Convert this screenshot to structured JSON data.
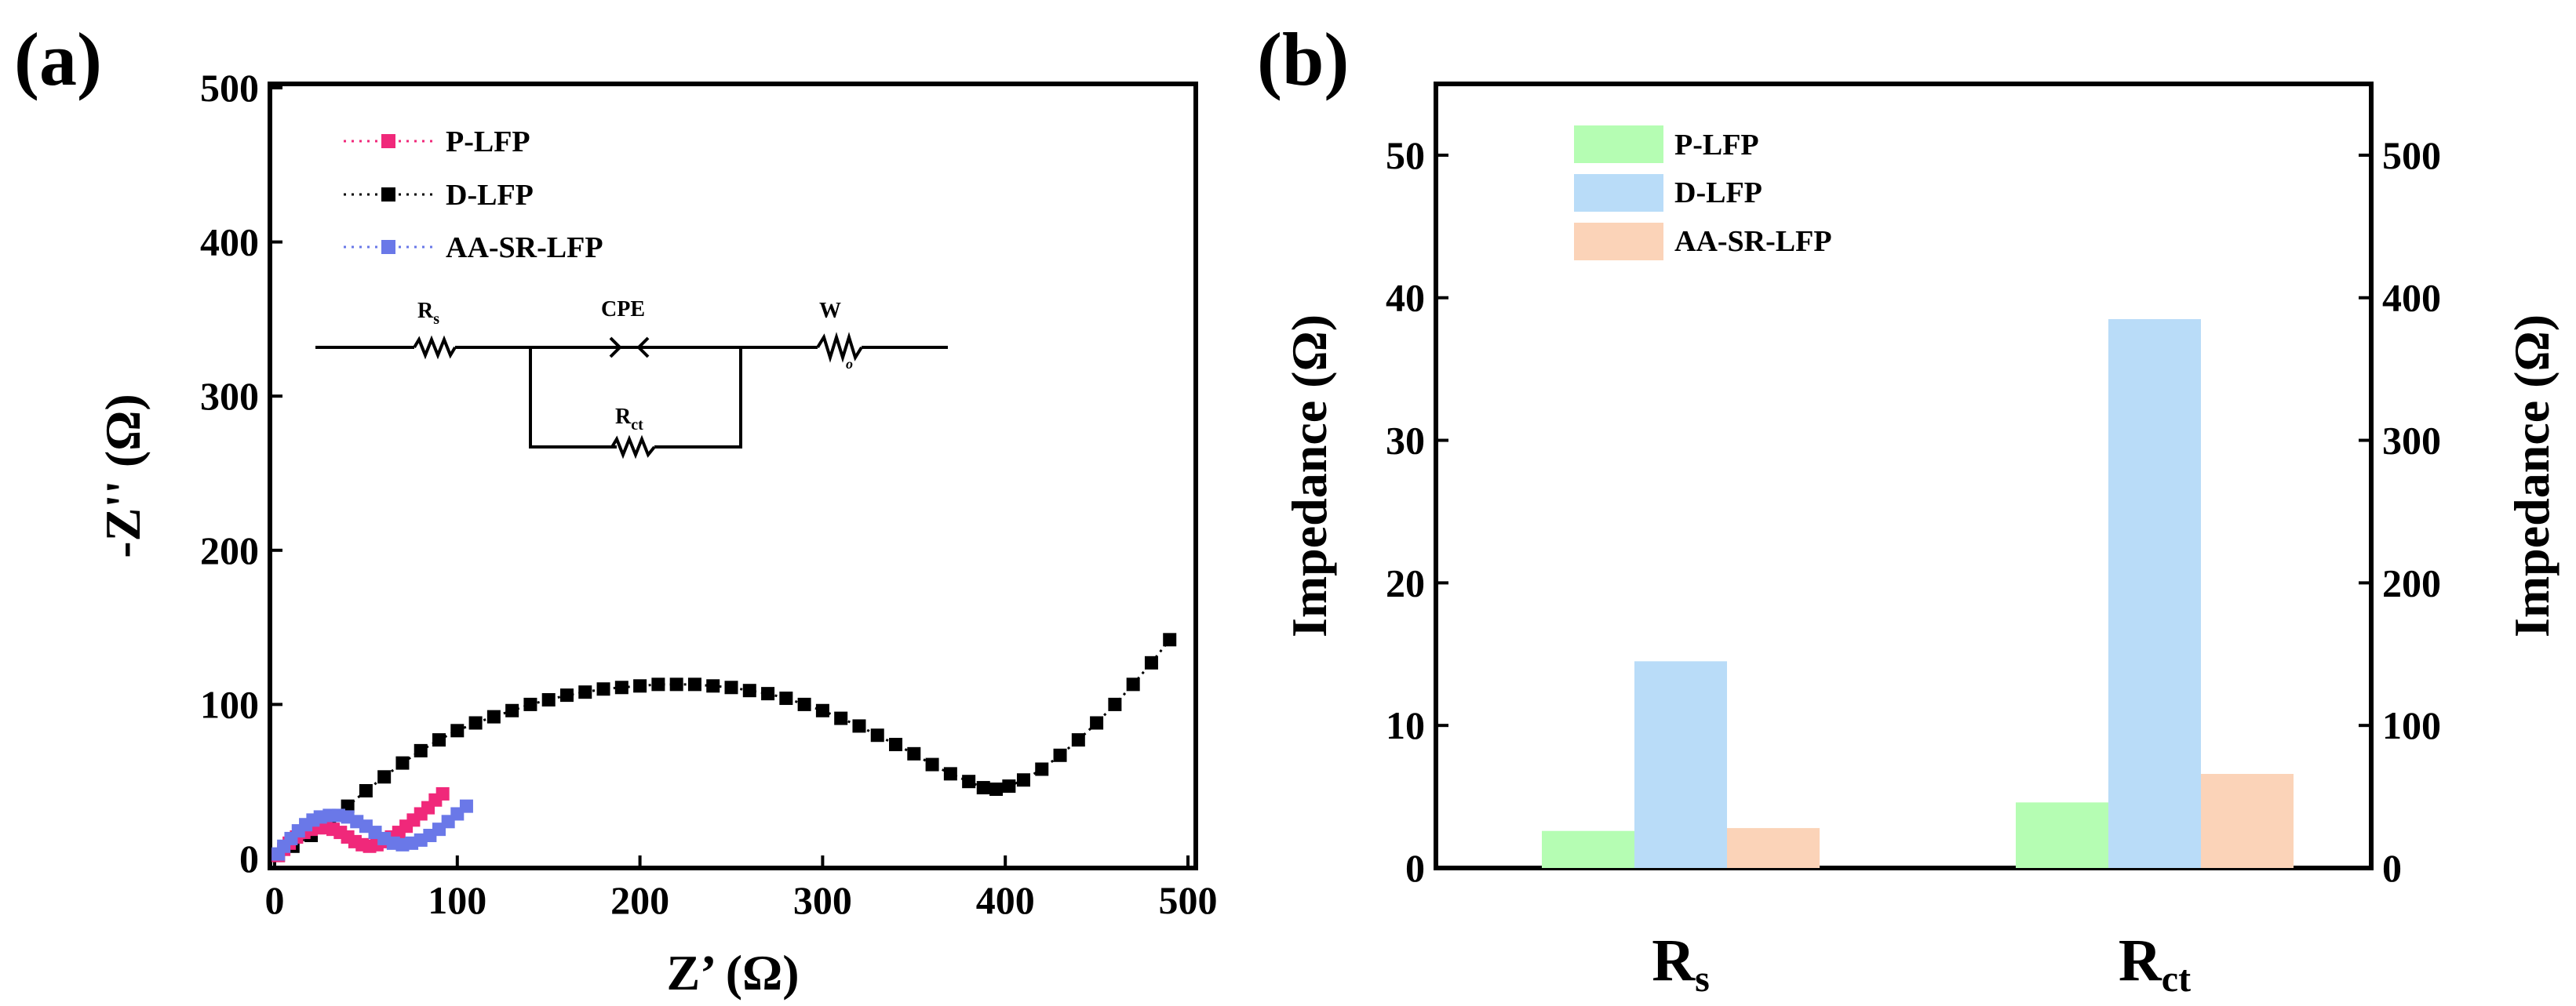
{
  "chart_data": [
    {
      "panel": "(a)",
      "type": "scatter",
      "title": "",
      "xlabel": "Z’ (Ω)",
      "ylabel": "-Z'' (Ω)",
      "xlim": [
        0,
        500
      ],
      "ylim": [
        0,
        500
      ],
      "xticks": [
        0,
        100,
        200,
        300,
        400,
        500
      ],
      "yticks": [
        0,
        100,
        200,
        300,
        400,
        500
      ],
      "legend_position": "top-left",
      "series": [
        {
          "name": "P-LFP",
          "color": "#f0287a",
          "x": [
            2,
            5,
            8,
            12,
            16,
            20,
            24,
            28,
            32,
            36,
            40,
            44,
            48,
            52,
            56,
            60,
            64,
            68,
            72,
            76,
            80,
            84,
            88,
            92
          ],
          "y": [
            2,
            6,
            10,
            14,
            17,
            19,
            20,
            20,
            19,
            17,
            14,
            11,
            9,
            8,
            9,
            11,
            14,
            17,
            21,
            25,
            29,
            33,
            38,
            42
          ]
        },
        {
          "name": "D-LFP",
          "color": "#000000",
          "x": [
            2,
            10,
            20,
            30,
            40,
            50,
            60,
            70,
            80,
            90,
            100,
            110,
            120,
            130,
            140,
            150,
            160,
            170,
            180,
            190,
            200,
            210,
            220,
            230,
            240,
            250,
            260,
            270,
            280,
            290,
            300,
            310,
            320,
            330,
            340,
            350,
            360,
            370,
            380,
            388,
            395,
            402,
            410,
            420,
            430,
            440,
            450,
            460,
            470,
            480,
            490
          ],
          "y": [
            2,
            8,
            15,
            24,
            34,
            44,
            53,
            62,
            70,
            77,
            83,
            88,
            92,
            96,
            100,
            103,
            106,
            108,
            110,
            111,
            112,
            113,
            113,
            113,
            112,
            111,
            109,
            107,
            104,
            100,
            96,
            91,
            86,
            80,
            74,
            68,
            61,
            55,
            50,
            46,
            45,
            47,
            51,
            58,
            67,
            77,
            88,
            100,
            113,
            127,
            142
          ]
        },
        {
          "name": "AA-SR-LFP",
          "color": "#6a78e8",
          "x": [
            2,
            5,
            9,
            13,
            17,
            21,
            25,
            30,
            35,
            40,
            45,
            50,
            55,
            60,
            65,
            70,
            75,
            80,
            85,
            90,
            95,
            100,
            105
          ],
          "y": [
            3,
            8,
            13,
            18,
            22,
            25,
            27,
            28,
            28,
            27,
            24,
            21,
            17,
            13,
            10,
            9,
            10,
            12,
            15,
            19,
            24,
            29,
            34
          ]
        }
      ],
      "inset_circuit": {
        "labels": [
          "R",
          "s",
          "CPE",
          "W",
          "o",
          "R",
          "ct"
        ]
      }
    },
    {
      "panel": "(b)",
      "type": "bar",
      "title": "",
      "xlabel": "",
      "ylabel": "Impedance (Ω)",
      "ylabel_right": "Impedance (Ω)",
      "categories": [
        {
          "main": "R",
          "sub": "s"
        },
        {
          "main": "R",
          "sub": "ct"
        }
      ],
      "ylim": [
        0,
        55
      ],
      "yticks": [
        0,
        10,
        20,
        30,
        40,
        50
      ],
      "ylim_right": [
        0,
        550
      ],
      "yticks_right": [
        0,
        100,
        200,
        300,
        400,
        500
      ],
      "legend_position": "top-left",
      "series": [
        {
          "name": "P-LFP",
          "color": "#b5fdb3",
          "values": [
            2.6,
            4.6
          ]
        },
        {
          "name": "D-LFP",
          "color": "#b9dcf8",
          "values": [
            14.5,
            38.5
          ]
        },
        {
          "name": "AA-SR-LFP",
          "color": "#fbd3b8",
          "values": [
            2.8,
            6.6
          ]
        }
      ]
    }
  ]
}
